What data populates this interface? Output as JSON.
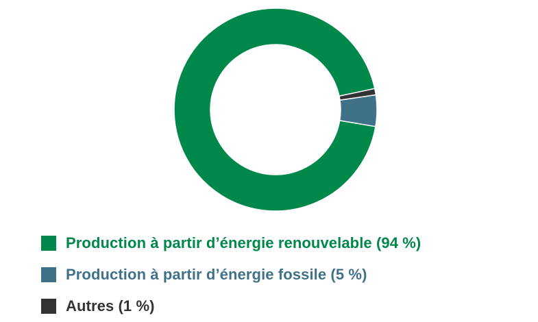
{
  "chart_data": {
    "type": "pie",
    "variant": "donut",
    "series": [
      {
        "name": "Production à partir d’énergie renouvelable (94 %)",
        "value": 94,
        "color": "#00874a"
      },
      {
        "name": "Production à partir d’énergie fossile (5 %)",
        "value": 5,
        "color": "#3f7289"
      },
      {
        "name": "Autres (1 %)",
        "value": 1,
        "color": "#333333"
      }
    ],
    "legend_position": "bottom-left"
  }
}
